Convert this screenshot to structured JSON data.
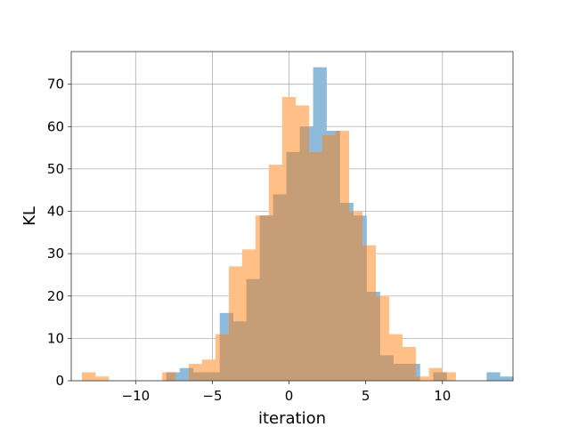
{
  "chart_data": {
    "type": "bar",
    "subtype": "overlaid-histogram",
    "xlabel": "iteration",
    "ylabel": "KL",
    "xlim": [
      -14.2,
      14.6
    ],
    "ylim": [
      0,
      77.7
    ],
    "xticks": [
      -10,
      -5,
      0,
      5,
      10
    ],
    "xtick_labels": [
      "−10",
      "−5",
      "0",
      "5",
      "10"
    ],
    "yticks": [
      0,
      10,
      20,
      30,
      40,
      50,
      60,
      70
    ],
    "ytick_labels": [
      "0",
      "10",
      "20",
      "30",
      "40",
      "50",
      "60",
      "70"
    ],
    "grid": true,
    "series": [
      {
        "color": "#8ebadb",
        "bin_start": -8.0,
        "bin_width": 0.87,
        "values": [
          2,
          3,
          2,
          2,
          16,
          14,
          24,
          39,
          44,
          54,
          60,
          74,
          59,
          42,
          39,
          21,
          6,
          4,
          4,
          0,
          2,
          0,
          0,
          0,
          2,
          1
        ]
      },
      {
        "color": "#ffbf86",
        "bin_start": -13.5,
        "bin_width": 0.87,
        "values": [
          2,
          1,
          0,
          0,
          0,
          0,
          2,
          0,
          4,
          5,
          11,
          27,
          31,
          39,
          51,
          67,
          65,
          54,
          58,
          59,
          40,
          32,
          20,
          11,
          8,
          1,
          3,
          2
        ]
      }
    ],
    "overlap_color": "#c59d76"
  }
}
